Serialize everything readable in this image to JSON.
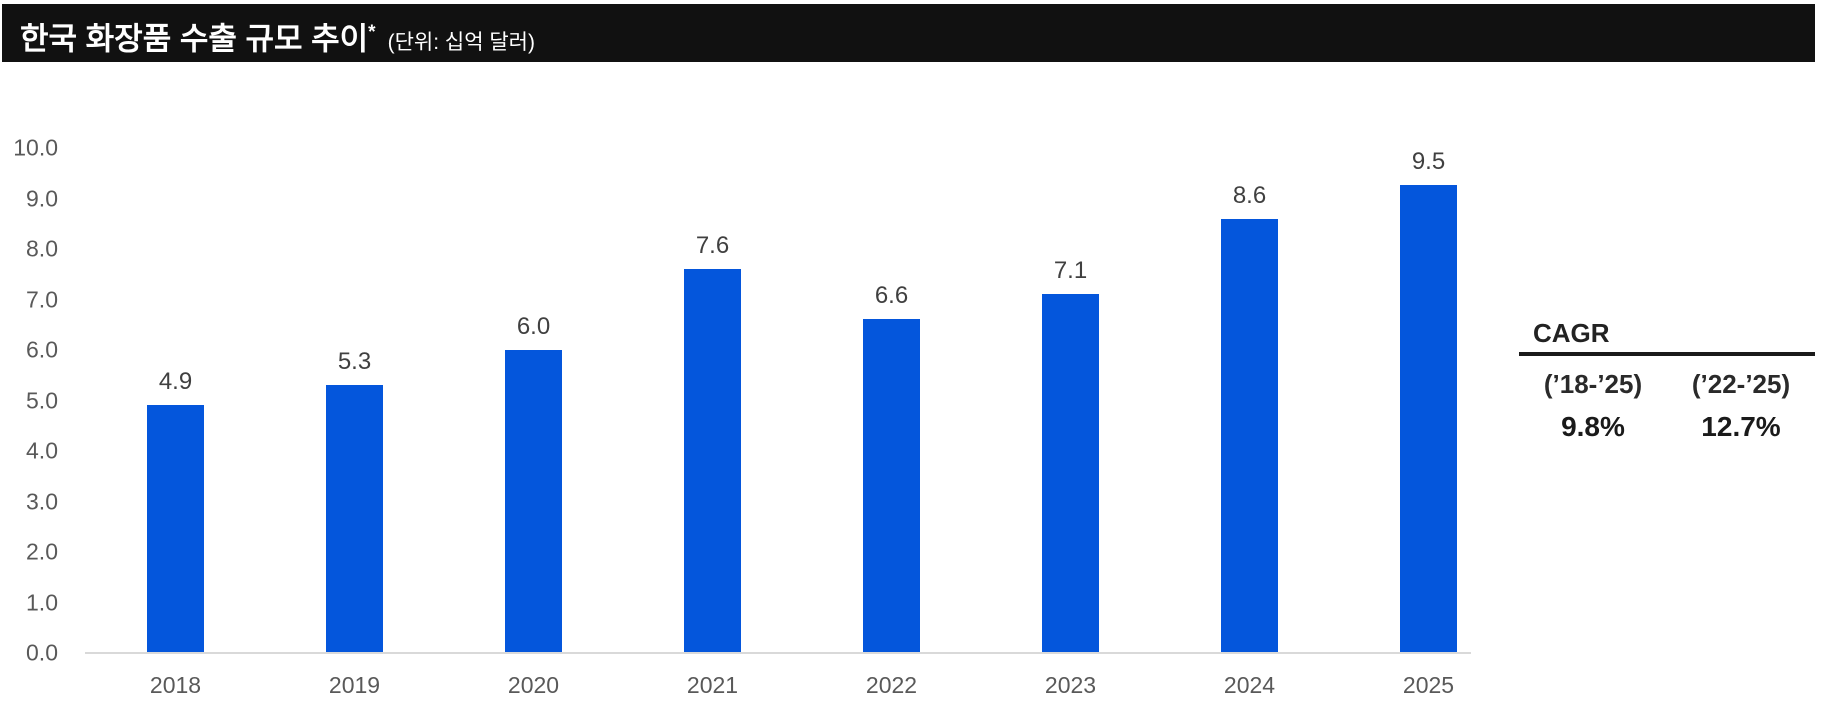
{
  "header": {
    "title": "한국 화장품 수출 규모 추이",
    "title_asterisk": "*",
    "unit_note": "(단위: 십억 달러)"
  },
  "chart_data": {
    "type": "bar",
    "title": "한국 화장품 수출 규모 추이 (단위: 십억 달러)",
    "categories": [
      "2018",
      "2019",
      "2020",
      "2021",
      "2022",
      "2023",
      "2024",
      "2025"
    ],
    "values": [
      4.9,
      5.3,
      6.0,
      7.6,
      6.6,
      7.1,
      8.6,
      9.5
    ],
    "value_labels": [
      "4.9",
      "5.3",
      "6.0",
      "7.6",
      "6.6",
      "7.1",
      "8.6",
      "9.5"
    ],
    "xlabel": "",
    "ylabel": "",
    "ylim": [
      0,
      10
    ],
    "yticks": [
      "10.0",
      "9.0",
      "8.0",
      "7.0",
      "6.0",
      "5.0",
      "4.0",
      "3.0",
      "2.0",
      "1.0",
      "0.0"
    ],
    "grid": false,
    "legend": null,
    "bar_color": "#0456DC"
  },
  "cagr": {
    "title": "CAGR",
    "entries": [
      {
        "period": "(’18-’25)",
        "value": "9.8%"
      },
      {
        "period": "(’22-’25)",
        "value": "12.7%"
      }
    ]
  },
  "colors": {
    "header_bg": "#111111",
    "header_text": "#ffffff",
    "bar": "#0456DC",
    "axis_text": "#595959",
    "data_label": "#404040",
    "baseline": "#d9d9d9",
    "cagr_text": "#1a1a1a"
  }
}
